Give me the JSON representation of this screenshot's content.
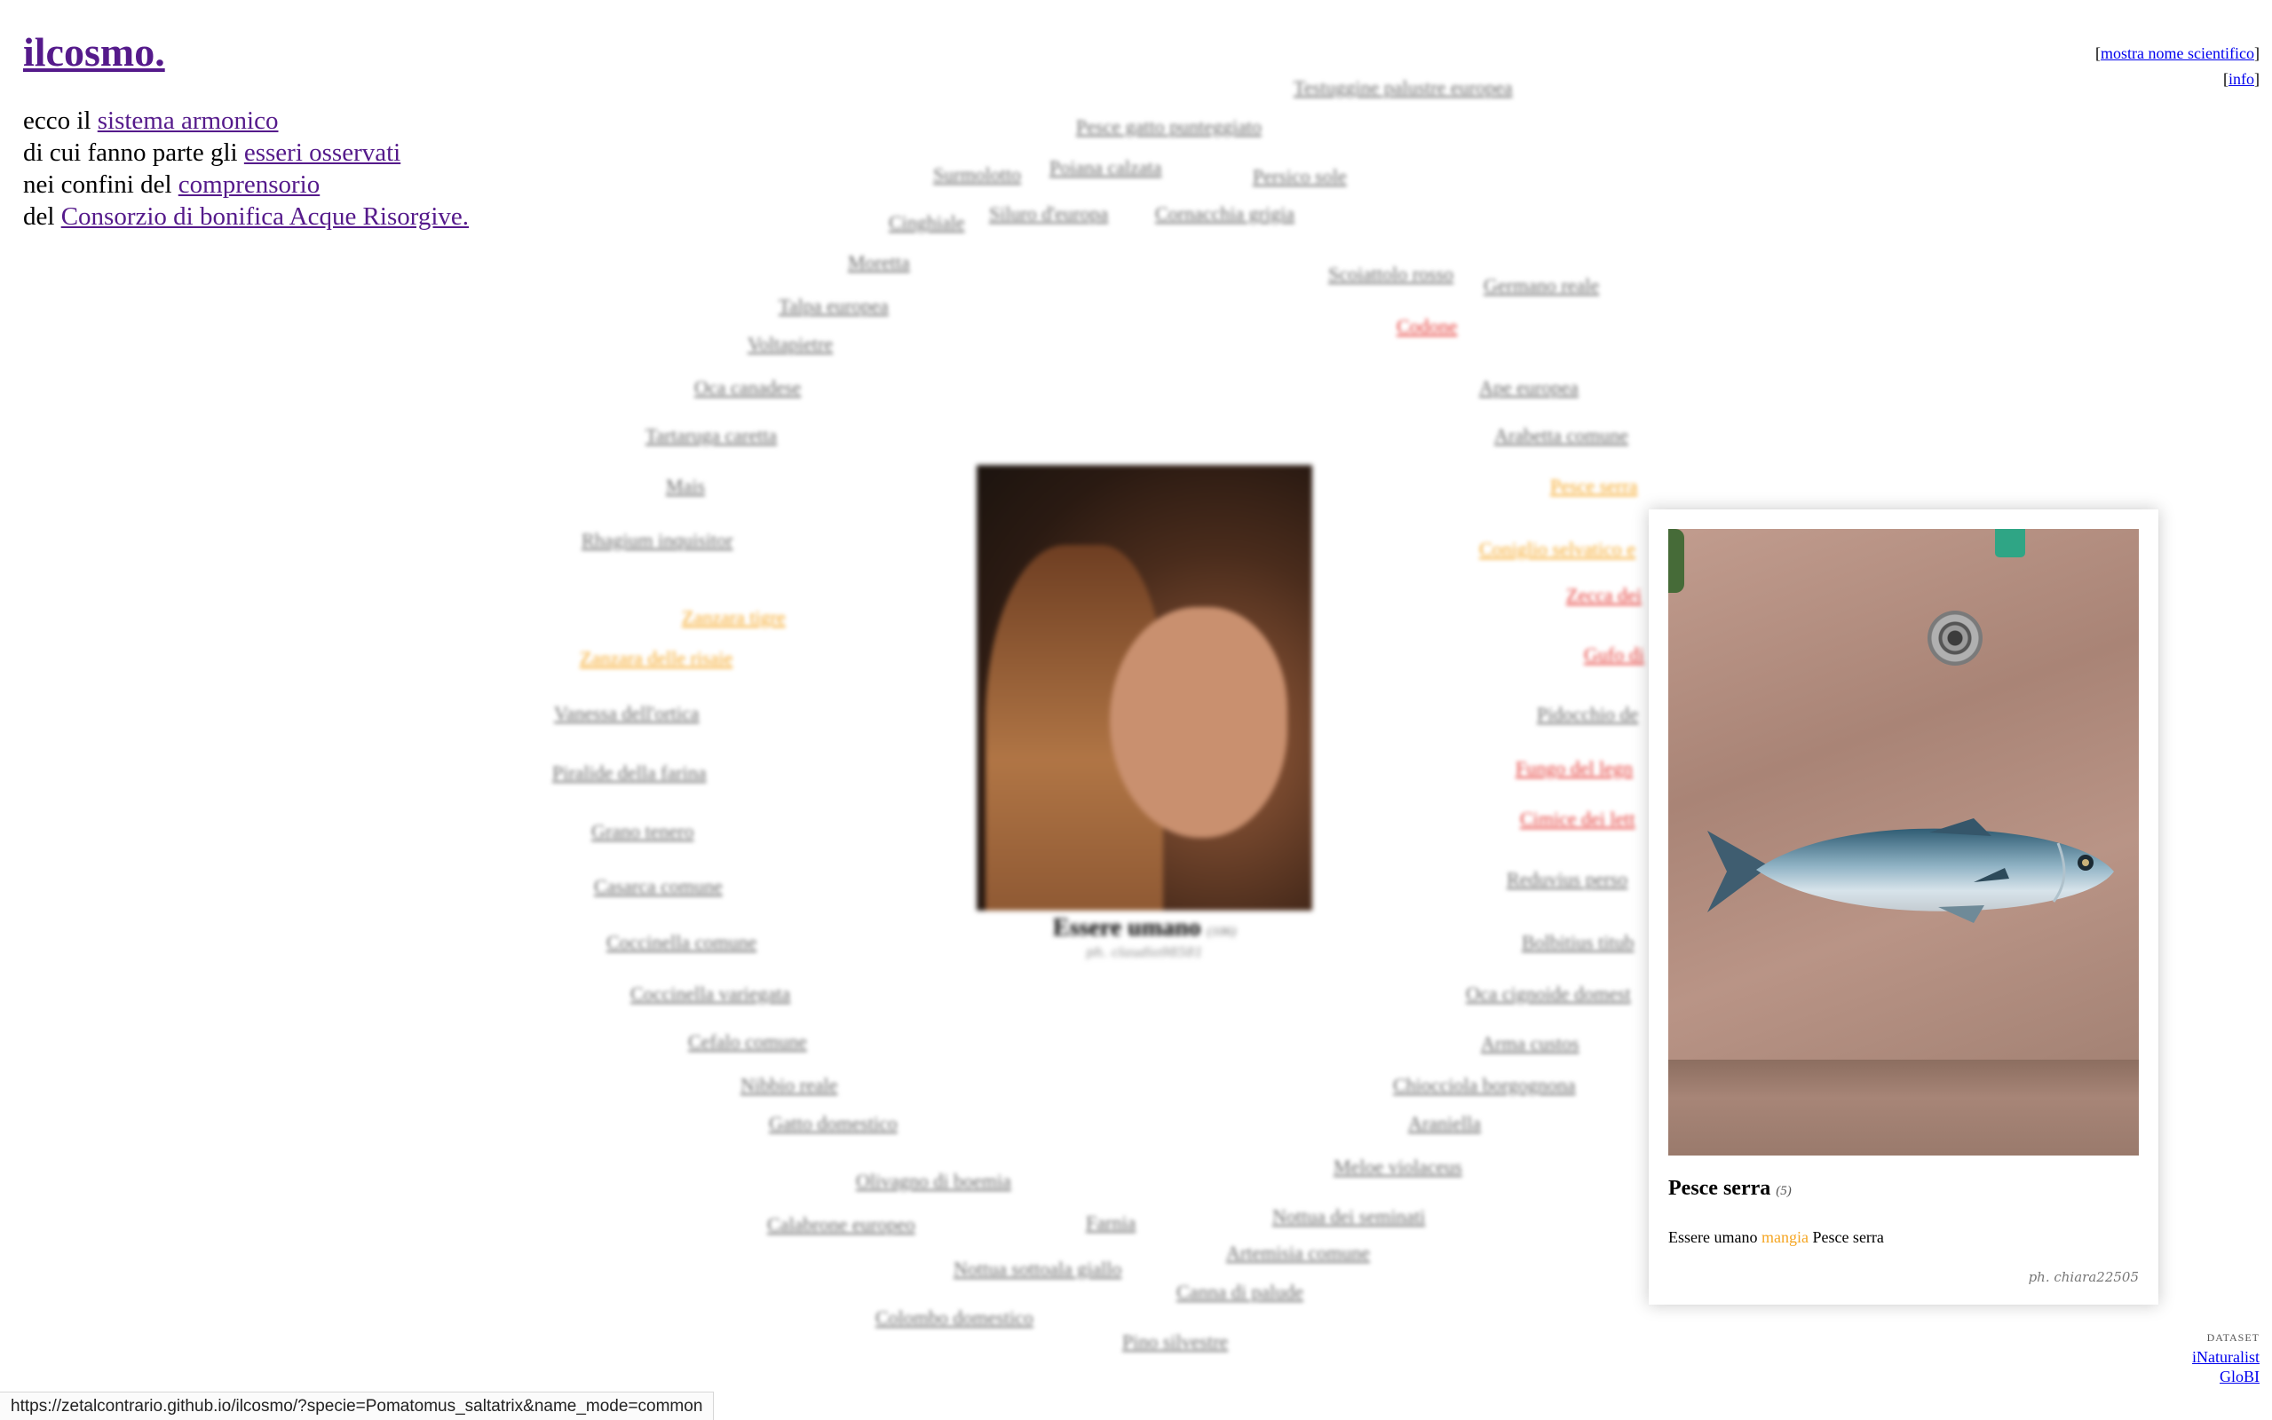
{
  "logo": "ilcosmo.",
  "intro": {
    "l1_pre": "ecco il ",
    "l1_link": "sistema armonico",
    "l2_pre": "di cui fanno parte gli ",
    "l2_link": "esseri osservati",
    "l3_pre": "nei confini del ",
    "l3_link": "comprensorio",
    "l4_pre": "del ",
    "l4_link": "Consorzio di bonifica Acque Risorgive."
  },
  "toplinks": {
    "scientific": "mostra nome scientifico",
    "info": "info"
  },
  "species": [
    {
      "name": "Testuggine palustre europea",
      "kind": "grey"
    },
    {
      "name": "Pesce gatto punteggiato",
      "kind": "grey"
    },
    {
      "name": "Surmolotto",
      "kind": "grey"
    },
    {
      "name": "Poiana calzata",
      "kind": "grey"
    },
    {
      "name": "Persico sole",
      "kind": "grey"
    },
    {
      "name": "Cinghiale",
      "kind": "grey"
    },
    {
      "name": "Siluro d'europa",
      "kind": "grey"
    },
    {
      "name": "Cornacchia grigia",
      "kind": "grey"
    },
    {
      "name": "Moretta",
      "kind": "grey"
    },
    {
      "name": "Scoiattolo rosso",
      "kind": "grey"
    },
    {
      "name": "Germano reale",
      "kind": "grey"
    },
    {
      "name": "Talpa europea",
      "kind": "grey"
    },
    {
      "name": "Codone",
      "kind": "red"
    },
    {
      "name": "Voltapietre",
      "kind": "grey"
    },
    {
      "name": "Oca canadese",
      "kind": "grey"
    },
    {
      "name": "Ape europea",
      "kind": "grey"
    },
    {
      "name": "Tartaruga caretta",
      "kind": "grey"
    },
    {
      "name": "Arabetta comune",
      "kind": "grey"
    },
    {
      "name": "Mais",
      "kind": "grey"
    },
    {
      "name": "Pesce serra",
      "kind": "orange"
    },
    {
      "name": "Rhagium inquisitor",
      "kind": "grey"
    },
    {
      "name": "Coniglio selvatico e",
      "kind": "orange"
    },
    {
      "name": "Zecca dei",
      "kind": "red"
    },
    {
      "name": "Zanzara tigre",
      "kind": "orange"
    },
    {
      "name": "Zanzara delle risaie",
      "kind": "orange"
    },
    {
      "name": "Gufo di",
      "kind": "red"
    },
    {
      "name": "Vanessa dell'ortica",
      "kind": "grey"
    },
    {
      "name": "Pidocchio de",
      "kind": "grey"
    },
    {
      "name": "Piralide della farina",
      "kind": "grey"
    },
    {
      "name": "Fungo del legn",
      "kind": "red"
    },
    {
      "name": "Cimice dei lett",
      "kind": "red"
    },
    {
      "name": "Grano tenero",
      "kind": "grey"
    },
    {
      "name": "Casarca comune",
      "kind": "grey"
    },
    {
      "name": "Reduvius perso",
      "kind": "grey"
    },
    {
      "name": "Coccinella comune",
      "kind": "grey"
    },
    {
      "name": "Bolbitius titub",
      "kind": "grey"
    },
    {
      "name": "Coccinella variegata",
      "kind": "grey"
    },
    {
      "name": "Oca cignoide domest",
      "kind": "grey"
    },
    {
      "name": "Cefalo comune",
      "kind": "grey"
    },
    {
      "name": "Arma custos",
      "kind": "grey"
    },
    {
      "name": "Nibbio reale",
      "kind": "grey"
    },
    {
      "name": "Chiocciola borgognona",
      "kind": "grey"
    },
    {
      "name": "Gatto domestico",
      "kind": "grey"
    },
    {
      "name": "Araniella",
      "kind": "grey"
    },
    {
      "name": "Meloe violaceus",
      "kind": "grey"
    },
    {
      "name": "Olivagno di boemia",
      "kind": "grey"
    },
    {
      "name": "Nottua dei seminati",
      "kind": "grey"
    },
    {
      "name": "Calabrone europeo",
      "kind": "grey"
    },
    {
      "name": "Farnia",
      "kind": "grey"
    },
    {
      "name": "Artemisia comune",
      "kind": "grey"
    },
    {
      "name": "Nottua sottoala giallo",
      "kind": "grey"
    },
    {
      "name": "Canna di palude",
      "kind": "grey"
    },
    {
      "name": "Colombo domestico",
      "kind": "grey"
    },
    {
      "name": "Pino silvestre",
      "kind": "grey"
    }
  ],
  "center": {
    "title": "Essere umano",
    "count": "(106)",
    "credit": "ph. claudio98581"
  },
  "card": {
    "title": "Pesce serra",
    "count": "(5)",
    "subject": "Essere umano",
    "verb": "mangia",
    "object": "Pesce serra",
    "credit": "ph. chiara22505"
  },
  "dataset": {
    "label": "DATASET",
    "inaturalist": "iNaturalist",
    "globi": "GloBI"
  },
  "statusbar": "https://zetalcontrario.github.io/ilcosmo/?specie=Pomatomus_saltatrix&name_mode=common",
  "colors": {
    "link_visited": "#551a8b",
    "link": "#0000ee",
    "grey": "#6b6b6b",
    "orange": "#f5a623",
    "red": "#e53935"
  },
  "icons": {
    "center_image": "person-photo",
    "card_image": "fish-photo"
  }
}
